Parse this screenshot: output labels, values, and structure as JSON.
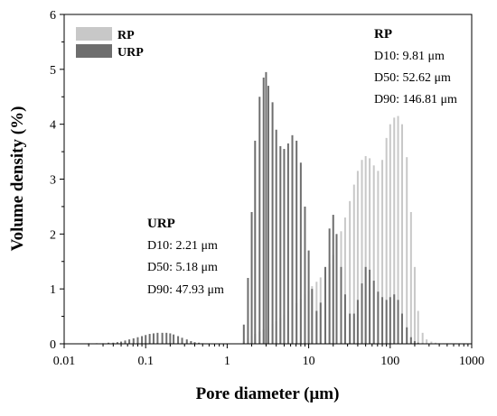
{
  "chart_data": {
    "type": "bar",
    "title": "",
    "xlabel": "Pore diameter (μm)",
    "ylabel": "Volume density (%)",
    "x_scale": "log",
    "xlim": [
      0.01,
      1000
    ],
    "ylim": [
      0,
      6
    ],
    "x_ticks": [
      0.01,
      0.1,
      1,
      10,
      100,
      1000
    ],
    "x_tick_labels": [
      "0.01",
      "0.1",
      "1",
      "10",
      "100",
      "1000"
    ],
    "y_ticks": [
      0,
      1,
      2,
      3,
      4,
      5,
      6
    ],
    "y_tick_labels": [
      "0",
      "1",
      "2",
      "3",
      "4",
      "5",
      "6"
    ],
    "grid": false,
    "legend": {
      "placement": "top-left",
      "entries": [
        {
          "name": "RP",
          "color": "#c8c8c8"
        },
        {
          "name": "URP",
          "color": "#6e6e6e"
        }
      ]
    },
    "series": [
      {
        "name": "RP",
        "color": "#c8c8c8",
        "points": [
          {
            "x": 1.6,
            "y": 0.05
          },
          {
            "x": 1.8,
            "y": 0.1
          },
          {
            "x": 2.0,
            "y": 0.14
          },
          {
            "x": 2.2,
            "y": 0.18
          },
          {
            "x": 2.5,
            "y": 0.22
          },
          {
            "x": 2.8,
            "y": 0.26
          },
          {
            "x": 3.2,
            "y": 0.31
          },
          {
            "x": 3.6,
            "y": 0.36
          },
          {
            "x": 4.0,
            "y": 0.41
          },
          {
            "x": 4.5,
            "y": 0.47
          },
          {
            "x": 5.0,
            "y": 0.53
          },
          {
            "x": 5.6,
            "y": 0.6
          },
          {
            "x": 6.3,
            "y": 0.67
          },
          {
            "x": 7.1,
            "y": 0.74
          },
          {
            "x": 8.0,
            "y": 0.82
          },
          {
            "x": 9.0,
            "y": 0.9
          },
          {
            "x": 10,
            "y": 0.97
          },
          {
            "x": 11,
            "y": 1.05
          },
          {
            "x": 12.5,
            "y": 1.13
          },
          {
            "x": 14,
            "y": 1.21
          },
          {
            "x": 16,
            "y": 1.32
          },
          {
            "x": 18,
            "y": 1.45
          },
          {
            "x": 20,
            "y": 1.62
          },
          {
            "x": 22,
            "y": 1.82
          },
          {
            "x": 25,
            "y": 2.05
          },
          {
            "x": 28,
            "y": 2.3
          },
          {
            "x": 32,
            "y": 2.6
          },
          {
            "x": 36,
            "y": 2.9
          },
          {
            "x": 40,
            "y": 3.15
          },
          {
            "x": 45,
            "y": 3.35
          },
          {
            "x": 50,
            "y": 3.42
          },
          {
            "x": 56,
            "y": 3.38
          },
          {
            "x": 63,
            "y": 3.25
          },
          {
            "x": 71,
            "y": 3.15
          },
          {
            "x": 80,
            "y": 3.35
          },
          {
            "x": 90,
            "y": 3.75
          },
          {
            "x": 100,
            "y": 4.0
          },
          {
            "x": 112,
            "y": 4.12
          },
          {
            "x": 125,
            "y": 4.15
          },
          {
            "x": 140,
            "y": 4.0
          },
          {
            "x": 160,
            "y": 3.4
          },
          {
            "x": 180,
            "y": 2.4
          },
          {
            "x": 200,
            "y": 1.4
          },
          {
            "x": 220,
            "y": 0.6
          },
          {
            "x": 250,
            "y": 0.2
          },
          {
            "x": 280,
            "y": 0.08
          },
          {
            "x": 320,
            "y": 0.04
          },
          {
            "x": 360,
            "y": 0.02
          },
          {
            "x": 400,
            "y": 0.01
          },
          {
            "x": 450,
            "y": 0.01
          },
          {
            "x": 500,
            "y": 0.01
          },
          {
            "x": 560,
            "y": 0.01
          },
          {
            "x": 630,
            "y": 0.01
          },
          {
            "x": 710,
            "y": 0.01
          },
          {
            "x": 800,
            "y": 0.01
          }
        ]
      },
      {
        "name": "URP",
        "color": "#6e6e6e",
        "points": [
          {
            "x": 0.02,
            "y": 0.01
          },
          {
            "x": 0.025,
            "y": 0.01
          },
          {
            "x": 0.03,
            "y": 0.01
          },
          {
            "x": 0.035,
            "y": 0.02
          },
          {
            "x": 0.04,
            "y": 0.02
          },
          {
            "x": 0.045,
            "y": 0.03
          },
          {
            "x": 0.05,
            "y": 0.04
          },
          {
            "x": 0.056,
            "y": 0.06
          },
          {
            "x": 0.063,
            "y": 0.08
          },
          {
            "x": 0.071,
            "y": 0.1
          },
          {
            "x": 0.08,
            "y": 0.12
          },
          {
            "x": 0.09,
            "y": 0.14
          },
          {
            "x": 0.1,
            "y": 0.16
          },
          {
            "x": 0.112,
            "y": 0.18
          },
          {
            "x": 0.125,
            "y": 0.19
          },
          {
            "x": 0.14,
            "y": 0.2
          },
          {
            "x": 0.16,
            "y": 0.2
          },
          {
            "x": 0.18,
            "y": 0.2
          },
          {
            "x": 0.2,
            "y": 0.19
          },
          {
            "x": 0.22,
            "y": 0.17
          },
          {
            "x": 0.25,
            "y": 0.14
          },
          {
            "x": 0.28,
            "y": 0.11
          },
          {
            "x": 0.32,
            "y": 0.08
          },
          {
            "x": 0.36,
            "y": 0.05
          },
          {
            "x": 0.4,
            "y": 0.03
          },
          {
            "x": 0.45,
            "y": 0.02
          },
          {
            "x": 0.5,
            "y": 0.01
          },
          {
            "x": 1.6,
            "y": 0.35
          },
          {
            "x": 1.8,
            "y": 1.2
          },
          {
            "x": 2.0,
            "y": 2.4
          },
          {
            "x": 2.2,
            "y": 3.7
          },
          {
            "x": 2.5,
            "y": 4.5
          },
          {
            "x": 2.8,
            "y": 4.85
          },
          {
            "x": 3.0,
            "y": 4.95
          },
          {
            "x": 3.2,
            "y": 4.7
          },
          {
            "x": 3.6,
            "y": 4.4
          },
          {
            "x": 4.0,
            "y": 3.9
          },
          {
            "x": 4.5,
            "y": 3.6
          },
          {
            "x": 5.0,
            "y": 3.55
          },
          {
            "x": 5.6,
            "y": 3.65
          },
          {
            "x": 6.3,
            "y": 3.8
          },
          {
            "x": 7.1,
            "y": 3.7
          },
          {
            "x": 8.0,
            "y": 3.3
          },
          {
            "x": 9.0,
            "y": 2.5
          },
          {
            "x": 10,
            "y": 1.7
          },
          {
            "x": 11,
            "y": 1.0
          },
          {
            "x": 12.5,
            "y": 0.6
          },
          {
            "x": 14,
            "y": 0.75
          },
          {
            "x": 16,
            "y": 1.4
          },
          {
            "x": 18,
            "y": 2.1
          },
          {
            "x": 20,
            "y": 2.35
          },
          {
            "x": 22,
            "y": 2.0
          },
          {
            "x": 25,
            "y": 1.4
          },
          {
            "x": 28,
            "y": 0.9
          },
          {
            "x": 32,
            "y": 0.55
          },
          {
            "x": 36,
            "y": 0.55
          },
          {
            "x": 40,
            "y": 0.8
          },
          {
            "x": 45,
            "y": 1.1
          },
          {
            "x": 50,
            "y": 1.4
          },
          {
            "x": 56,
            "y": 1.35
          },
          {
            "x": 63,
            "y": 1.15
          },
          {
            "x": 71,
            "y": 0.95
          },
          {
            "x": 80,
            "y": 0.85
          },
          {
            "x": 90,
            "y": 0.8
          },
          {
            "x": 100,
            "y": 0.85
          },
          {
            "x": 112,
            "y": 0.9
          },
          {
            "x": 125,
            "y": 0.8
          },
          {
            "x": 140,
            "y": 0.55
          },
          {
            "x": 160,
            "y": 0.3
          },
          {
            "x": 180,
            "y": 0.12
          },
          {
            "x": 200,
            "y": 0.05
          },
          {
            "x": 220,
            "y": 0.02
          },
          {
            "x": 250,
            "y": 0.01
          }
        ]
      }
    ],
    "annotations": [
      {
        "title": "RP",
        "lines": [
          "D10: 9.81 μm",
          "D50: 52.62 μm",
          "D90: 146.81 μm"
        ]
      },
      {
        "title": "URP",
        "lines": [
          "D10: 2.21 μm",
          "D50: 5.18 μm",
          "D90: 47.93 μm"
        ]
      }
    ]
  }
}
